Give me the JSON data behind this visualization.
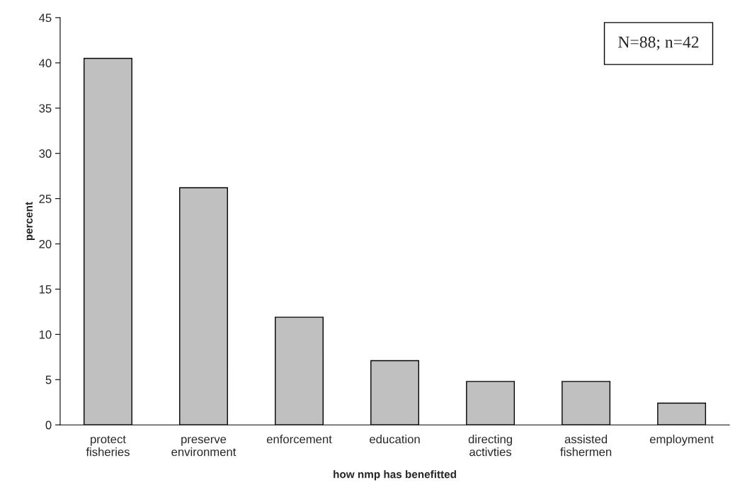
{
  "chart_data": {
    "type": "bar",
    "categories": [
      "protect\nfisheries",
      "preserve\nenvironment",
      "enforcement",
      "education",
      "directing\nactivties",
      "assisted\nfishermen",
      "employment"
    ],
    "values": [
      40.5,
      26.2,
      11.9,
      7.1,
      4.8,
      4.8,
      2.4
    ],
    "color": "#c0c0c0",
    "xlabel": "how nmp has benefitted",
    "ylabel": "percent",
    "ylim": [
      0,
      45
    ],
    "yticks": [
      0,
      5,
      10,
      15,
      20,
      25,
      30,
      35,
      40,
      45
    ],
    "annotations": [
      "N=88; n=42"
    ],
    "grid": false,
    "legend": false
  }
}
